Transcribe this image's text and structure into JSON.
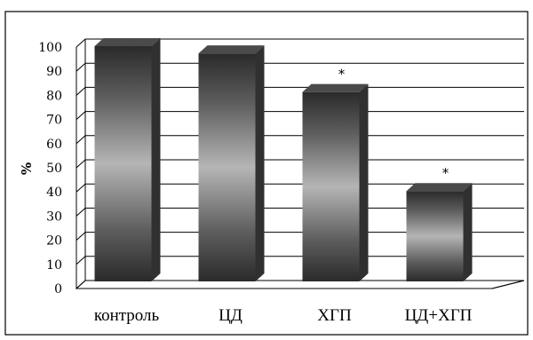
{
  "chart_data": {
    "type": "bar",
    "title": "",
    "xlabel": "",
    "ylabel": "%",
    "ylim": [
      0,
      100
    ],
    "yticks": [
      0,
      10,
      20,
      30,
      40,
      50,
      60,
      70,
      80,
      90,
      100
    ],
    "categories": [
      "контроль",
      "ЦД",
      "ХГП",
      "ЦД+ХГП"
    ],
    "values": [
      100,
      97,
      81,
      40
    ],
    "annotations": [
      "",
      "",
      "*",
      "*"
    ],
    "grid": true,
    "style": "3d-cylinder-gradient",
    "colors": {
      "bar_light": "#b5b5b5",
      "bar_dark": "#2a2a2a",
      "bar_top": "#4a4a4a",
      "bar_side": "#303030",
      "grid": "#000000",
      "border": "#000000"
    }
  }
}
